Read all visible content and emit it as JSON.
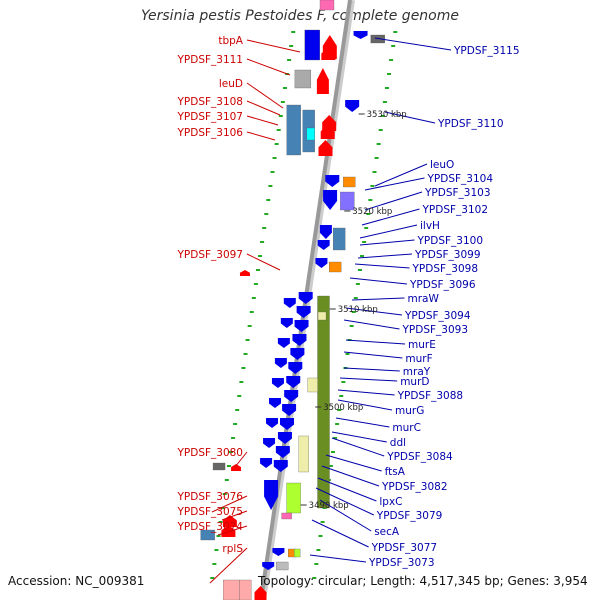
{
  "title": "Yersinia pestis Pestoides F, complete genome",
  "footer": {
    "accession": "Accession: NC_009381",
    "summary": "Topology: circular; Length: 4,517,345 bp; Genes: 3,954"
  },
  "colors": {
    "minus_label": "#cc0000",
    "plus_label": "#0000aa",
    "minus_gene": "#ff0000",
    "plus_gene": "#0000ee",
    "backbone": "#999999",
    "tick": "#22aa22",
    "olive": "#6b8e23",
    "olive_light": "#eeeeaa",
    "steel": "#4682b4",
    "orange": "#ff8c00",
    "purple": "#8470ff",
    "grey": "#888888",
    "lime": "#adff2f",
    "cyan": "#00ffff",
    "pink": "#ff69b4"
  },
  "kbp_labels": [
    "3530 kbp",
    "3520 kbp",
    "3510 kbp",
    "3500 kbp",
    "3490 kbp"
  ],
  "left_labels": [
    "tbpA",
    "YPDSF_3111",
    "leuD",
    "YPDSF_3108",
    "YPDSF_3107",
    "YPDSF_3106",
    "YPDSF_3097",
    "YPDSF_3080",
    "YPDSF_3076",
    "YPDSF_3075",
    "YPDSF_3074",
    "rplS"
  ],
  "right_labels": [
    "YPDSF_3115",
    "YPDSF_3110",
    "leuO",
    "YPDSF_3104",
    "YPDSF_3103",
    "YPDSF_3102",
    "ilvH",
    "YPDSF_3100",
    "YPDSF_3099",
    "YPDSF_3098",
    "YPDSF_3096",
    "mraW",
    "YPDSF_3094",
    "YPDSF_3093",
    "murE",
    "murF",
    "mraY",
    "murD",
    "YPDSF_3088",
    "murG",
    "murC",
    "ddl",
    "YPDSF_3084",
    "ftsA",
    "YPDSF_3082",
    "lpxC",
    "YPDSF_3079",
    "secA",
    "YPDSF_3077",
    "YPDSF_3073"
  ]
}
